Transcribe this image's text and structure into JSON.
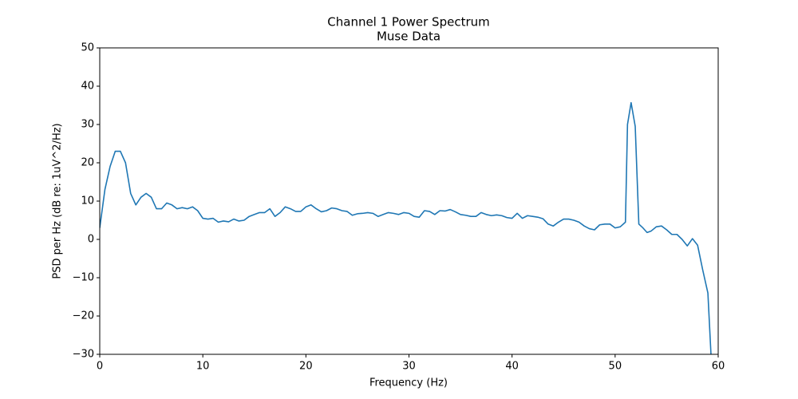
{
  "chart_data": {
    "type": "line",
    "title": "Channel 1 Power Spectrum",
    "subtitle": "Muse Data",
    "x_label": "Frequency (Hz)",
    "y_label": "PSD per Hz (dB re: 1uV^2/Hz)",
    "xlim": [
      0,
      60
    ],
    "ylim": [
      -30,
      50
    ],
    "xticks": [
      0,
      10,
      20,
      30,
      40,
      50,
      60
    ],
    "yticks": [
      {
        "value": -30,
        "label": "−30"
      },
      {
        "value": -20,
        "label": "−20"
      },
      {
        "value": -10,
        "label": "−10"
      },
      0,
      10,
      20,
      30,
      40,
      50
    ],
    "grid": false,
    "x": [
      0,
      0.5,
      1,
      1.5,
      2,
      2.5,
      3,
      3.5,
      4,
      4.5,
      5,
      5.5,
      6,
      6.5,
      7,
      7.5,
      8,
      8.5,
      9,
      9.5,
      10,
      10.5,
      11,
      11.5,
      12,
      12.5,
      13,
      13.5,
      14,
      14.5,
      15,
      15.5,
      16,
      16.5,
      17,
      17.5,
      18,
      18.5,
      19,
      19.5,
      20,
      20.5,
      21,
      21.5,
      22,
      22.5,
      23,
      23.5,
      24,
      24.5,
      25,
      25.5,
      26,
      26.5,
      27,
      27.5,
      28,
      28.5,
      29,
      29.5,
      30,
      30.5,
      31,
      31.5,
      32,
      32.5,
      33,
      33.5,
      34,
      34.5,
      35,
      35.5,
      36,
      36.5,
      37,
      37.5,
      38,
      38.5,
      39,
      39.5,
      40,
      40.5,
      41,
      41.5,
      42,
      42.5,
      43,
      43.5,
      44,
      44.5,
      45,
      45.5,
      46,
      46.5,
      47,
      47.5,
      48,
      48.5,
      49,
      49.5,
      50,
      50.5,
      51,
      51.2,
      51.55,
      51.95,
      52.3,
      52.7,
      53.1,
      53.5,
      54,
      54.5,
      55,
      55.5,
      56,
      56.5,
      57,
      57.5,
      58,
      58.5,
      59,
      59.3
    ],
    "series": [
      {
        "name": "Channel 1",
        "color": "#1f77b4",
        "values": [
          3,
          13,
          19,
          23,
          23,
          20,
          12,
          9,
          11,
          12,
          11,
          8,
          8,
          9.5,
          9,
          8,
          8.3,
          8,
          8.5,
          7.5,
          5.5,
          5.3,
          5.5,
          4.5,
          4.8,
          4.6,
          5.3,
          4.8,
          5,
          6,
          6.5,
          7,
          7,
          8,
          6,
          7,
          8.5,
          8,
          7.3,
          7.3,
          8.5,
          9,
          8,
          7.2,
          7.5,
          8.2,
          8,
          7.5,
          7.3,
          6.3,
          6.7,
          6.8,
          7,
          6.8,
          6,
          6.5,
          7,
          6.8,
          6.5,
          7,
          6.8,
          6,
          5.8,
          7.5,
          7.3,
          6.5,
          7.5,
          7.4,
          7.8,
          7.2,
          6.5,
          6.3,
          6,
          6,
          7,
          6.5,
          6.2,
          6.4,
          6.2,
          5.7,
          5.5,
          6.8,
          5.5,
          6.2,
          6,
          5.8,
          5.4,
          4,
          3.5,
          4.5,
          5.3,
          5.3,
          5,
          4.5,
          3.5,
          2.8,
          2.5,
          3.8,
          4,
          4,
          3,
          3.3,
          4.5,
          30,
          35.7,
          29.5,
          4,
          3,
          1.8,
          2.2,
          3.3,
          3.5,
          2.5,
          1.3,
          1.3,
          0,
          -1.7,
          0.2,
          -1.5,
          -8,
          -14,
          -30
        ]
      }
    ]
  }
}
